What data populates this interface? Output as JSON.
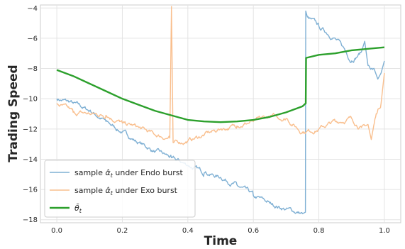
{
  "chart_data": {
    "type": "line",
    "title": "",
    "xlabel": "Time",
    "ylabel": "Trading Speed",
    "xlim": [
      -0.05,
      1.05
    ],
    "ylim": [
      -18.2,
      -3.8
    ],
    "xticks": [
      0.0,
      0.2,
      0.4,
      0.6,
      0.8,
      1.0
    ],
    "xtick_labels": [
      "0.0",
      "0.2",
      "0.4",
      "0.6",
      "0.8",
      "1.0"
    ],
    "yticks": [
      -18,
      -16,
      -14,
      -12,
      -10,
      -8,
      -6,
      -4
    ],
    "ytick_labels": [
      "−18",
      "−16",
      "−14",
      "−12",
      "−10",
      "−8",
      "−6",
      "−4"
    ],
    "grid": true,
    "legend_position": "lower-left",
    "series": [
      {
        "name": "sample α̂t under Endo burst",
        "legend_main": "sample ",
        "legend_sym": "α̂",
        "legend_sub": "t",
        "legend_rest": " under Endo burst",
        "color": "#7fb0d4",
        "noisy": true,
        "x": [
          0.0,
          0.05,
          0.1,
          0.15,
          0.2,
          0.25,
          0.3,
          0.35,
          0.4,
          0.45,
          0.5,
          0.55,
          0.6,
          0.65,
          0.7,
          0.75,
          0.759,
          0.76,
          0.765,
          0.8,
          0.85,
          0.88,
          0.9,
          0.93,
          0.94,
          0.95,
          0.97,
          0.98,
          0.99,
          1.0
        ],
        "y": [
          -10.0,
          -10.3,
          -10.8,
          -11.5,
          -12.2,
          -12.9,
          -13.5,
          -13.9,
          -14.4,
          -14.9,
          -15.2,
          -15.7,
          -16.4,
          -16.9,
          -17.3,
          -17.6,
          -17.5,
          -4.2,
          -4.6,
          -5.2,
          -6.0,
          -6.8,
          -7.5,
          -6.9,
          -6.2,
          -7.8,
          -8.1,
          -8.7,
          -8.3,
          -7.5
        ]
      },
      {
        "name": "sample α̂t under Exo burst",
        "legend_main": "sample ",
        "legend_sym": "α̂",
        "legend_sub": "t",
        "legend_rest": " under Exo burst",
        "color": "#f9bf8e",
        "noisy": true,
        "x": [
          0.0,
          0.05,
          0.1,
          0.15,
          0.2,
          0.25,
          0.3,
          0.345,
          0.35,
          0.355,
          0.4,
          0.45,
          0.5,
          0.55,
          0.6,
          0.65,
          0.7,
          0.75,
          0.8,
          0.85,
          0.9,
          0.93,
          0.95,
          0.96,
          0.975,
          0.99,
          1.0
        ],
        "y": [
          -10.3,
          -10.9,
          -11.0,
          -11.1,
          -11.6,
          -11.9,
          -12.4,
          -12.6,
          -3.9,
          -12.9,
          -12.8,
          -12.4,
          -12.0,
          -11.8,
          -11.5,
          -11.2,
          -11.3,
          -12.2,
          -12.0,
          -11.5,
          -11.3,
          -11.9,
          -11.7,
          -12.7,
          -11.0,
          -10.3,
          -8.3
        ]
      },
      {
        "name": "θ̄t",
        "legend_main": "",
        "legend_sym": "θ̄",
        "legend_sub": "t",
        "legend_rest": "",
        "color": "#2ca02c",
        "noisy": false,
        "x": [
          0.0,
          0.05,
          0.1,
          0.15,
          0.2,
          0.25,
          0.3,
          0.35,
          0.4,
          0.45,
          0.5,
          0.55,
          0.6,
          0.65,
          0.7,
          0.75,
          0.76,
          0.761,
          0.8,
          0.85,
          0.9,
          0.95,
          1.0
        ],
        "y": [
          -8.1,
          -8.5,
          -9.0,
          -9.5,
          -10.0,
          -10.4,
          -10.8,
          -11.1,
          -11.4,
          -11.5,
          -11.55,
          -11.5,
          -11.4,
          -11.2,
          -10.9,
          -10.5,
          -10.3,
          -7.3,
          -7.1,
          -7.0,
          -6.8,
          -6.7,
          -6.6
        ]
      }
    ]
  }
}
